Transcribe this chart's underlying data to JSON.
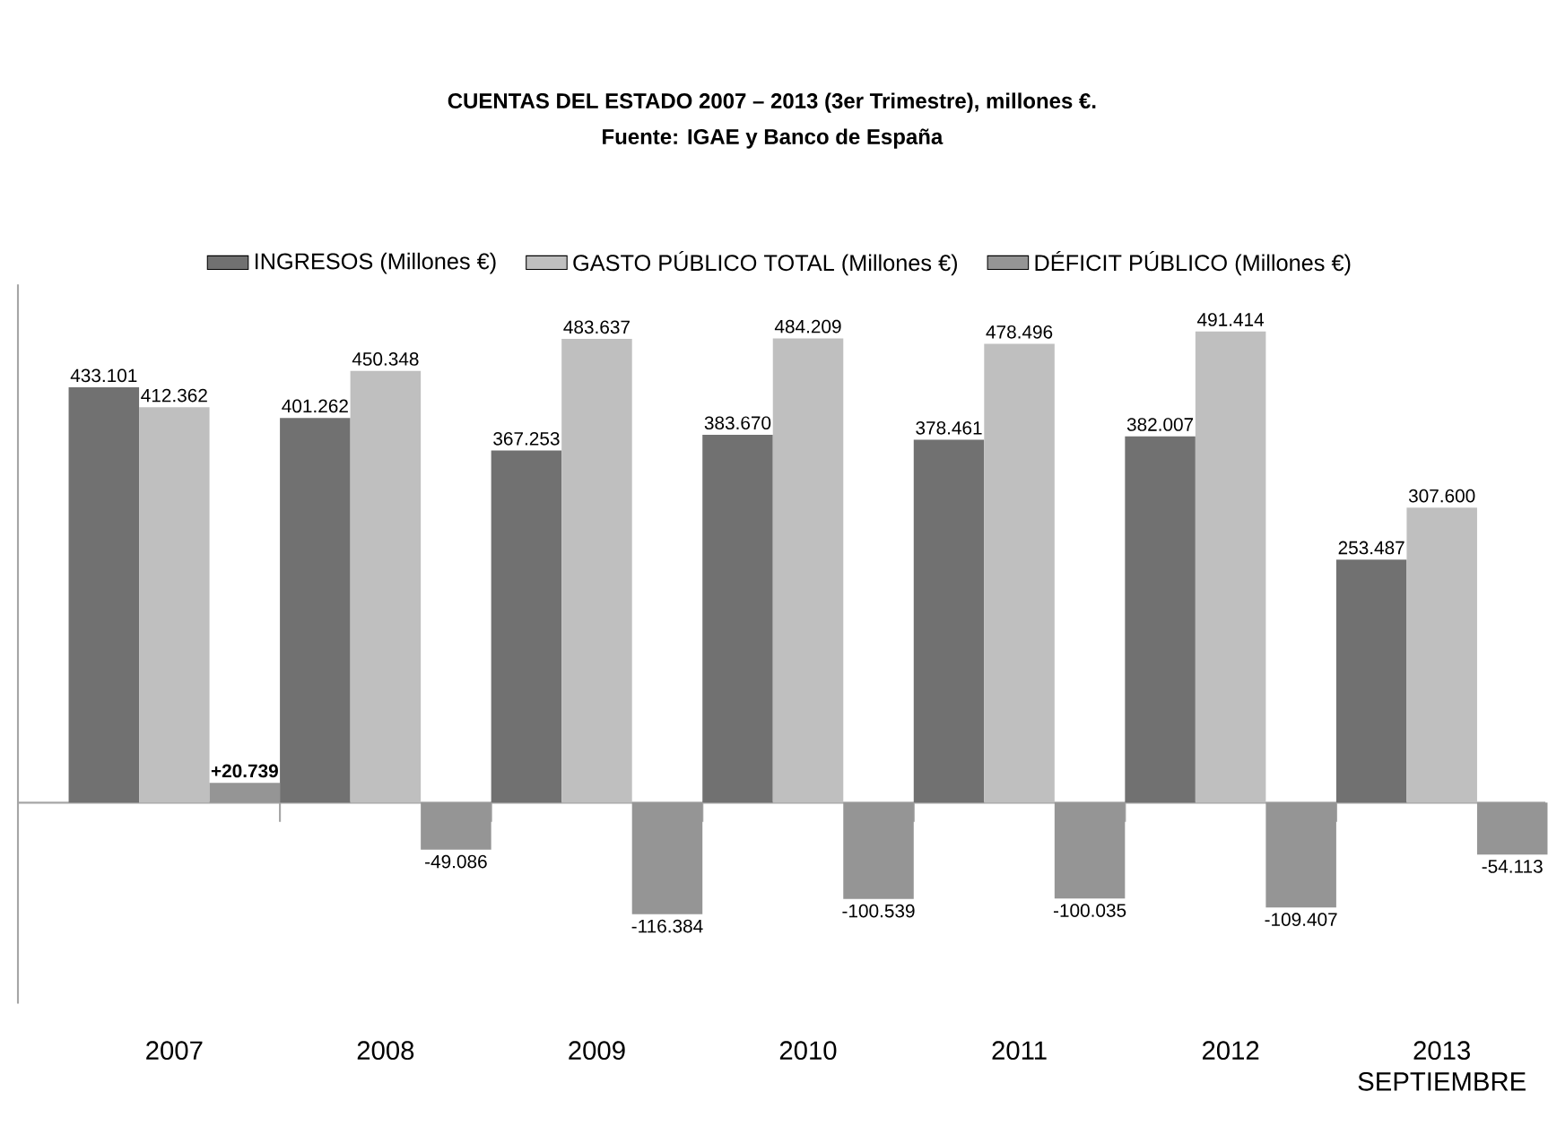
{
  "chart_data": {
    "type": "bar",
    "title": "CUENTAS DEL ESTADO 2007 – 2013 (3er Trimestre), millones €.",
    "subtitle": "Fuente: IGAE y Banco de España",
    "categories": [
      "2007",
      "2008",
      "2009",
      "2010",
      "2011",
      "2012",
      "2013 SEPTIEMBRE"
    ],
    "series": [
      {
        "name": "INGRESOS (Millones €)",
        "color": "#717171",
        "values": [
          433101,
          401262,
          367253,
          383670,
          378461,
          382007,
          253487
        ],
        "value_labels": [
          "433.101",
          "401.262",
          "367.253",
          "383.670",
          "378.461",
          "382.007",
          "253.487"
        ]
      },
      {
        "name": "GASTO PÚBLICO TOTAL (Millones €)",
        "color": "#bfbfbf",
        "values": [
          412362,
          450348,
          483637,
          484209,
          478496,
          491414,
          307600
        ],
        "value_labels": [
          "412.362",
          "450.348",
          "483.637",
          "484.209",
          "478.496",
          "491.414",
          "307.600"
        ]
      },
      {
        "name": "DÉFICIT PÚBLICO (Millones €)",
        "color": "#959595",
        "values": [
          20739,
          -49086,
          -116384,
          -100539,
          -100035,
          -109407,
          -54113
        ],
        "value_labels": [
          "**+20.739**",
          "-49.086",
          "-116.384",
          "-100.539",
          "-100.035",
          "-109.407",
          "-54.113"
        ]
      }
    ],
    "legend": "top"
  }
}
